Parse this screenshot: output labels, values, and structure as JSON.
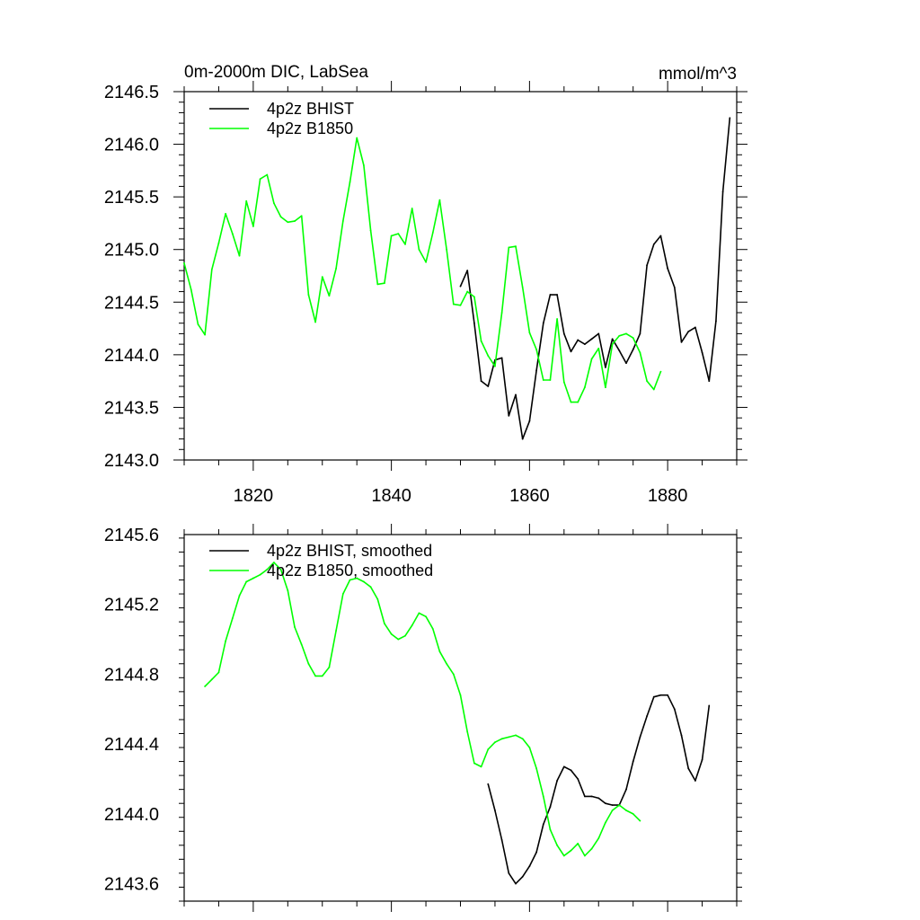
{
  "chart_data": [
    {
      "type": "line",
      "title": "0m-2000m DIC, LabSea",
      "units": "mmol/m^3",
      "xlim": [
        1810,
        1890
      ],
      "ylim": [
        2143.0,
        2146.5
      ],
      "yticks": [
        2143.0,
        2143.5,
        2144.0,
        2144.5,
        2145.0,
        2145.5,
        2146.0,
        2146.5
      ],
      "ytick_labels": [
        "2143.0",
        "2143.5",
        "2144.0",
        "2144.5",
        "2145.0",
        "2145.5",
        "2146.0",
        "2146.5"
      ],
      "xticks": [
        1820,
        1840,
        1860,
        1880
      ],
      "xtick_labels": [
        "1820",
        "1840",
        "1860",
        "1880"
      ],
      "legend_position": "top-left",
      "series": [
        {
          "name": "4p2z BHIST",
          "color": "#000000",
          "x": [
            1850,
            1851,
            1852,
            1853,
            1854,
            1855,
            1856,
            1857,
            1858,
            1859,
            1860,
            1861,
            1862,
            1863,
            1864,
            1865,
            1866,
            1867,
            1868,
            1869,
            1870,
            1871,
            1872,
            1873,
            1874,
            1875,
            1876,
            1877,
            1878,
            1879,
            1880,
            1881,
            1882,
            1883,
            1884,
            1885,
            1886,
            1887,
            1888,
            1889
          ],
          "values": [
            2144.65,
            2144.8,
            2144.3,
            2143.75,
            2143.7,
            2143.95,
            2143.97,
            2143.42,
            2143.62,
            2143.2,
            2143.37,
            2143.85,
            2144.3,
            2144.57,
            2144.57,
            2144.2,
            2144.03,
            2144.14,
            2144.1,
            2144.15,
            2144.2,
            2143.88,
            2144.15,
            2144.04,
            2143.92,
            2144.05,
            2144.2,
            2144.85,
            2145.05,
            2145.13,
            2144.82,
            2144.64,
            2144.12,
            2144.22,
            2144.26,
            2144.02,
            2143.75,
            2144.32,
            2145.55,
            2146.25
          ]
        },
        {
          "name": "4p2z B1850",
          "color": "#00ff00",
          "x": [
            1810,
            1811,
            1812,
            1813,
            1814,
            1815,
            1816,
            1817,
            1818,
            1819,
            1820,
            1821,
            1822,
            1823,
            1824,
            1825,
            1826,
            1827,
            1828,
            1829,
            1830,
            1831,
            1832,
            1833,
            1834,
            1835,
            1836,
            1837,
            1838,
            1839,
            1840,
            1841,
            1842,
            1843,
            1844,
            1845,
            1846,
            1847,
            1848,
            1849,
            1850,
            1851,
            1852,
            1853,
            1854,
            1855,
            1856,
            1857,
            1858,
            1859,
            1860,
            1861,
            1862,
            1863,
            1864,
            1865,
            1866,
            1867,
            1868,
            1869,
            1870,
            1871,
            1872,
            1873,
            1874,
            1875,
            1876,
            1877,
            1878,
            1879
          ],
          "values": [
            2144.87,
            2144.62,
            2144.29,
            2144.19,
            2144.81,
            2145.06,
            2145.34,
            2145.15,
            2144.94,
            2145.46,
            2145.22,
            2145.67,
            2145.71,
            2145.44,
            2145.31,
            2145.26,
            2145.27,
            2145.32,
            2144.57,
            2144.31,
            2144.74,
            2144.56,
            2144.82,
            2145.27,
            2145.64,
            2146.06,
            2145.8,
            2145.18,
            2144.67,
            2144.68,
            2145.13,
            2145.15,
            2145.05,
            2145.39,
            2145.0,
            2144.88,
            2145.16,
            2145.47,
            2145.0,
            2144.48,
            2144.47,
            2144.6,
            2144.55,
            2144.13,
            2143.99,
            2143.89,
            2144.4,
            2145.02,
            2145.03,
            2144.64,
            2144.21,
            2144.05,
            2143.76,
            2143.76,
            2144.34,
            2143.74,
            2143.55,
            2143.55,
            2143.69,
            2143.96,
            2144.06,
            2143.69,
            2144.1,
            2144.18,
            2144.2,
            2144.16,
            2144.02,
            2143.75,
            2143.67,
            2143.84
          ]
        }
      ]
    },
    {
      "type": "line",
      "title": "",
      "xlim": [
        1810,
        1890
      ],
      "ylim": [
        2143.5,
        2145.6
      ],
      "yticks": [
        2143.6,
        2144.0,
        2144.4,
        2144.8,
        2145.2,
        2145.6
      ],
      "ytick_labels": [
        "2143.6",
        "2144.0",
        "2144.4",
        "2144.8",
        "2145.2",
        "2145.6"
      ],
      "xticks": [
        1820,
        1840,
        1860,
        1880
      ],
      "legend_position": "top-left",
      "series": [
        {
          "name": "4p2z BHIST, smoothed",
          "color": "#000000",
          "x": [
            1854,
            1855,
            1856,
            1857,
            1858,
            1859,
            1860,
            1861,
            1862,
            1863,
            1864,
            1865,
            1866,
            1867,
            1868,
            1869,
            1870,
            1871,
            1872,
            1873,
            1874,
            1875,
            1876,
            1877,
            1878,
            1879,
            1880,
            1881,
            1882,
            1883,
            1884,
            1885,
            1886
          ],
          "values": [
            2144.17,
            2144.02,
            2143.85,
            2143.66,
            2143.6,
            2143.64,
            2143.7,
            2143.78,
            2143.94,
            2144.04,
            2144.19,
            2144.27,
            2144.25,
            2144.2,
            2144.1,
            2144.1,
            2144.09,
            2144.06,
            2144.05,
            2144.05,
            2144.14,
            2144.3,
            2144.44,
            2144.56,
            2144.67,
            2144.68,
            2144.68,
            2144.6,
            2144.45,
            2144.26,
            2144.19,
            2144.31,
            2144.62
          ]
        },
        {
          "name": "4p2z B1850, smoothed",
          "color": "#00ff00",
          "x": [
            1813,
            1814,
            1815,
            1816,
            1817,
            1818,
            1819,
            1820,
            1821,
            1822,
            1823,
            1824,
            1825,
            1826,
            1827,
            1828,
            1829,
            1830,
            1831,
            1832,
            1833,
            1834,
            1835,
            1836,
            1837,
            1838,
            1839,
            1840,
            1841,
            1842,
            1843,
            1844,
            1845,
            1846,
            1847,
            1848,
            1849,
            1850,
            1851,
            1852,
            1853,
            1854,
            1855,
            1856,
            1857,
            1858,
            1859,
            1860,
            1861,
            1862,
            1863,
            1864,
            1865,
            1866,
            1867,
            1868,
            1869,
            1870,
            1871,
            1872,
            1873,
            1874,
            1875,
            1876
          ],
          "values": [
            2144.73,
            2144.77,
            2144.81,
            2144.99,
            2145.12,
            2145.25,
            2145.33,
            2145.35,
            2145.37,
            2145.4,
            2145.44,
            2145.4,
            2145.28,
            2145.07,
            2144.97,
            2144.86,
            2144.79,
            2144.79,
            2144.84,
            2145.05,
            2145.26,
            2145.34,
            2145.35,
            2145.33,
            2145.3,
            2145.23,
            2145.09,
            2145.03,
            2145.0,
            2145.02,
            2145.08,
            2145.15,
            2145.13,
            2145.06,
            2144.93,
            2144.86,
            2144.8,
            2144.68,
            2144.47,
            2144.29,
            2144.27,
            2144.37,
            2144.41,
            2144.43,
            2144.44,
            2144.45,
            2144.43,
            2144.38,
            2144.26,
            2144.1,
            2143.91,
            2143.82,
            2143.76,
            2143.79,
            2143.83,
            2143.76,
            2143.8,
            2143.86,
            2143.95,
            2144.02,
            2144.05,
            2144.02,
            2144.0,
            2143.96
          ]
        }
      ]
    }
  ]
}
